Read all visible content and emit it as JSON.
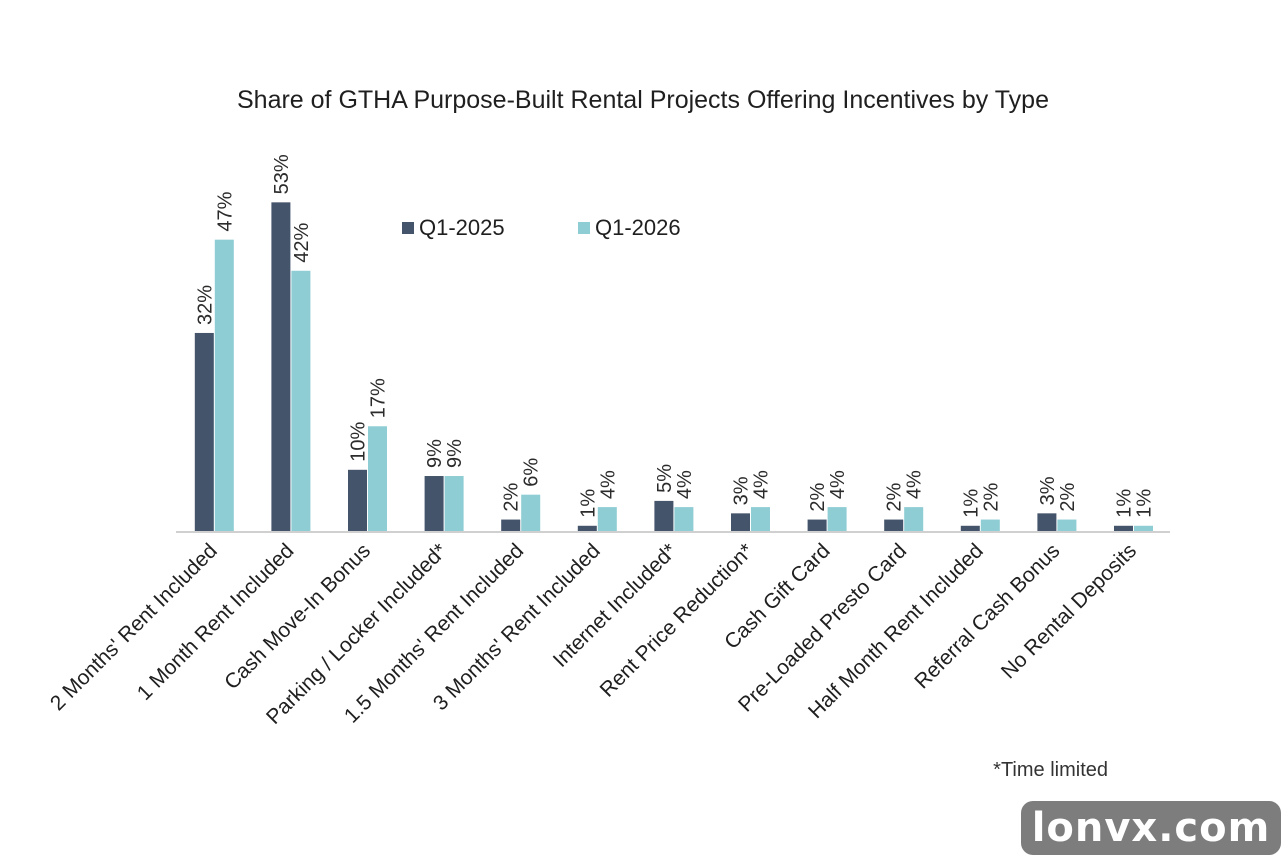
{
  "chart_data": {
    "type": "bar",
    "title": "Share of GTHA Purpose-Built Rental Projects Offering Incentives by Type",
    "categories": [
      "2 Months' Rent Included",
      "1 Month Rent Included",
      "Cash Move-In Bonus",
      "Parking / Locker Included*",
      "1.5 Months' Rent Included",
      "3 Months' Rent Included",
      "Internet Included*",
      "Rent Price Reduction*",
      "Cash Gift Card",
      "Pre-Loaded Presto Card",
      "Half Month Rent Included",
      "Referral Cash Bonus",
      "No Rental Deposits"
    ],
    "series": [
      {
        "name": "Q1-2025",
        "color": "#44546a",
        "values": [
          32,
          53,
          10,
          9,
          2,
          1,
          5,
          3,
          2,
          2,
          1,
          3,
          1
        ]
      },
      {
        "name": "Q1-2026",
        "color": "#8ecdd4",
        "values": [
          47,
          42,
          17,
          9,
          6,
          4,
          4,
          4,
          4,
          4,
          2,
          2,
          1
        ]
      }
    ],
    "value_suffix": "%",
    "ylim": [
      0,
      60
    ],
    "grid": false,
    "legend_position": "top-center",
    "footnote": "*Time limited"
  },
  "watermark": {
    "text": "lonvx.com"
  }
}
